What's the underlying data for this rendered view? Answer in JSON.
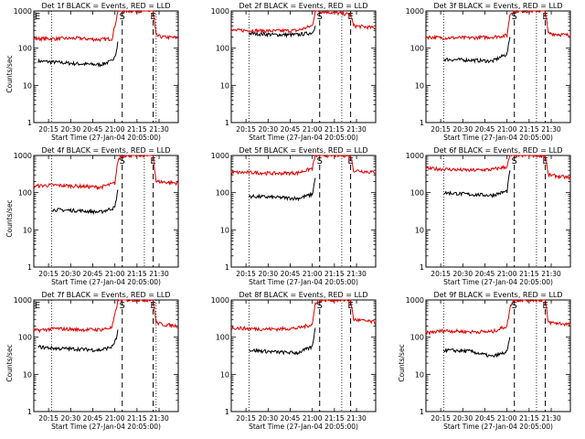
{
  "figure": {
    "panel_count": 9,
    "layout": "3x3 grid",
    "colors": {
      "events": "#000000",
      "lld": "#e00000",
      "axes": "#000000",
      "background": "#ffffff"
    }
  },
  "chart_data": [
    {
      "type": "line",
      "title": "Det 1f BLACK = Events, RED = LLD",
      "xlabel": "Start Time (27-Jan-04 20:05:00)",
      "ylabel": "Counts/sec",
      "xlim": [
        "20:05",
        "21:43"
      ],
      "ylim": [
        1,
        1000
      ],
      "yscale": "log",
      "xticks": [
        "20:15",
        "20:30",
        "20:45",
        "21:00",
        "21:15",
        "21:30"
      ],
      "yticks": [
        "1",
        "10",
        "100",
        "1000"
      ],
      "markers": [
        "E",
        "S",
        "E"
      ],
      "dotted_lines": [
        "20:17",
        "21:28"
      ],
      "dashed_lines": [
        "21:05",
        "21:26"
      ],
      "series": [
        {
          "name": "BLACK",
          "x": [
            "20:08",
            "20:20",
            "20:35",
            "20:50",
            "20:58",
            "21:01",
            "21:02"
          ],
          "values": [
            45,
            42,
            38,
            36,
            45,
            80,
            150
          ]
        },
        {
          "name": "RED",
          "x": [
            "20:05",
            "20:20",
            "20:35",
            "20:50",
            "20:58",
            "21:01",
            "21:02",
            "21:26",
            "21:28",
            "21:32",
            "21:43"
          ],
          "values": [
            180,
            180,
            185,
            170,
            180,
            600,
            1000,
            1000,
            220,
            200,
            190
          ]
        }
      ]
    },
    {
      "type": "line",
      "title": "Det 2f BLACK = Events, RED = LLD",
      "xlabel": "Start Time (27-Jan-04 20:05:00)",
      "ylabel": "",
      "xlim": [
        "20:05",
        "21:43"
      ],
      "ylim": [
        1,
        1000
      ],
      "yscale": "log",
      "xticks": [
        "20:15",
        "20:30",
        "20:45",
        "21:00",
        "21:15",
        "21:30"
      ],
      "yticks": [
        "1",
        "10",
        "100",
        "1000"
      ],
      "markers": [
        "S",
        "E"
      ],
      "dotted_lines": [
        "20:17",
        "21:20"
      ],
      "dashed_lines": [
        "21:05",
        "21:26"
      ],
      "series": [
        {
          "name": "BLACK",
          "x": [
            "20:17",
            "20:35",
            "20:50",
            "21:00",
            "21:02"
          ],
          "values": [
            250,
            230,
            230,
            260,
            400
          ]
        },
        {
          "name": "RED",
          "x": [
            "20:05",
            "20:17",
            "20:35",
            "20:50",
            "21:00",
            "21:02",
            "21:04",
            "21:26",
            "21:28",
            "21:43"
          ],
          "values": [
            300,
            300,
            290,
            300,
            400,
            1000,
            1000,
            800,
            400,
            350
          ]
        }
      ]
    },
    {
      "type": "line",
      "title": "Det 3f BLACK = Events, RED = LLD",
      "xlabel": "Start Time (27-Jan-04 20:05:00)",
      "ylabel": "",
      "xlim": [
        "20:05",
        "21:43"
      ],
      "ylim": [
        1,
        1000
      ],
      "yscale": "log",
      "xticks": [
        "20:15",
        "20:30",
        "20:45",
        "21:00",
        "21:15",
        "21:30"
      ],
      "yticks": [
        "1",
        "10",
        "100",
        "1000"
      ],
      "markers": [
        "S",
        "E"
      ],
      "dotted_lines": [
        "20:17",
        "21:20"
      ],
      "dashed_lines": [
        "21:05",
        "21:26"
      ],
      "series": [
        {
          "name": "BLACK",
          "x": [
            "20:17",
            "20:35",
            "20:50",
            "21:00",
            "21:02"
          ],
          "values": [
            50,
            48,
            45,
            70,
            200
          ]
        },
        {
          "name": "RED",
          "x": [
            "20:05",
            "20:17",
            "20:35",
            "20:50",
            "21:00",
            "21:02",
            "21:04",
            "21:26",
            "21:28",
            "21:43"
          ],
          "values": [
            200,
            190,
            190,
            200,
            220,
            800,
            1000,
            1000,
            250,
            220
          ]
        }
      ]
    },
    {
      "type": "line",
      "title": "Det 4f BLACK = Events, RED = LLD",
      "xlabel": "Start Time (27-Jan-04 20:05:00)",
      "ylabel": "Counts/sec",
      "xlim": [
        "20:05",
        "21:43"
      ],
      "ylim": [
        1,
        1000
      ],
      "yscale": "log",
      "xticks": [
        "20:15",
        "20:30",
        "20:45",
        "21:00",
        "21:15",
        "21:30"
      ],
      "yticks": [
        "1",
        "10",
        "100",
        "1000"
      ],
      "markers": [
        "S",
        "E"
      ],
      "dotted_lines": [
        "20:17",
        "21:20"
      ],
      "dashed_lines": [
        "21:05",
        "21:26"
      ],
      "series": [
        {
          "name": "BLACK",
          "x": [
            "20:17",
            "20:35",
            "20:50",
            "21:00",
            "21:02"
          ],
          "values": [
            35,
            33,
            30,
            40,
            120
          ]
        },
        {
          "name": "RED",
          "x": [
            "20:05",
            "20:17",
            "20:35",
            "20:50",
            "21:00",
            "21:02",
            "21:04",
            "21:26",
            "21:28",
            "21:43"
          ],
          "values": [
            150,
            160,
            150,
            140,
            180,
            700,
            1000,
            1000,
            200,
            180
          ]
        }
      ]
    },
    {
      "type": "line",
      "title": "Det 5f BLACK = Events, RED = LLD",
      "xlabel": "Start Time (27-Jan-04 20:05:00)",
      "ylabel": "",
      "xlim": [
        "20:05",
        "21:43"
      ],
      "ylim": [
        1,
        1000
      ],
      "yscale": "log",
      "xticks": [
        "20:15",
        "20:30",
        "20:45",
        "21:00",
        "21:15",
        "21:30"
      ],
      "yticks": [
        "1",
        "10",
        "100",
        "1000"
      ],
      "markers": [
        "S",
        "E"
      ],
      "dotted_lines": [
        "20:17",
        "21:20"
      ],
      "dashed_lines": [
        "21:05",
        "21:26"
      ],
      "series": [
        {
          "name": "BLACK",
          "x": [
            "20:17",
            "20:35",
            "20:50",
            "21:00",
            "21:02"
          ],
          "values": [
            80,
            75,
            70,
            90,
            250
          ]
        },
        {
          "name": "RED",
          "x": [
            "20:05",
            "20:17",
            "20:35",
            "20:50",
            "21:00",
            "21:02",
            "21:04",
            "21:26",
            "21:28",
            "21:43"
          ],
          "values": [
            350,
            350,
            330,
            340,
            450,
            1000,
            1000,
            1000,
            400,
            350
          ]
        }
      ]
    },
    {
      "type": "line",
      "title": "Det 6f BLACK = Events, RED = LLD",
      "xlabel": "Start Time (27-Jan-04 20:05:00)",
      "ylabel": "",
      "xlim": [
        "20:05",
        "21:43"
      ],
      "ylim": [
        1,
        1000
      ],
      "yscale": "log",
      "xticks": [
        "20:15",
        "20:30",
        "20:45",
        "21:00",
        "21:15",
        "21:30"
      ],
      "yticks": [
        "1",
        "10",
        "100",
        "1000"
      ],
      "markers": [
        "S",
        "E"
      ],
      "dotted_lines": [
        "20:17",
        "21:20"
      ],
      "dashed_lines": [
        "21:05",
        "21:26"
      ],
      "series": [
        {
          "name": "BLACK",
          "x": [
            "20:17",
            "20:35",
            "20:50",
            "21:00",
            "21:02"
          ],
          "values": [
            100,
            90,
            85,
            110,
            400
          ]
        },
        {
          "name": "RED",
          "x": [
            "20:05",
            "20:17",
            "20:35",
            "20:50",
            "21:00",
            "21:02",
            "21:04",
            "21:26",
            "21:28",
            "21:43"
          ],
          "values": [
            450,
            430,
            400,
            420,
            500,
            1000,
            1000,
            1000,
            300,
            250
          ]
        }
      ]
    },
    {
      "type": "line",
      "title": "Det 7f BLACK = Events, RED = LLD",
      "xlabel": "Start Time (27-Jan-04 20:05:00)",
      "ylabel": "Counts/sec",
      "xlim": [
        "20:05",
        "21:43"
      ],
      "ylim": [
        1,
        1000
      ],
      "yscale": "log",
      "xticks": [
        "20:15",
        "20:30",
        "20:45",
        "21:00",
        "21:15",
        "21:30"
      ],
      "yticks": [
        "1",
        "10",
        "100",
        "1000"
      ],
      "markers": [
        "E",
        "S",
        "E"
      ],
      "dotted_lines": [
        "20:17",
        "21:28"
      ],
      "dashed_lines": [
        "21:05",
        "21:26"
      ],
      "series": [
        {
          "name": "BLACK",
          "x": [
            "20:08",
            "20:20",
            "20:35",
            "20:50",
            "20:58",
            "21:01",
            "21:02"
          ],
          "values": [
            55,
            50,
            48,
            45,
            55,
            90,
            160
          ]
        },
        {
          "name": "RED",
          "x": [
            "20:05",
            "20:20",
            "20:35",
            "20:50",
            "20:58",
            "21:01",
            "21:02",
            "21:26",
            "21:28",
            "21:32",
            "21:43"
          ],
          "values": [
            150,
            170,
            160,
            160,
            180,
            600,
            1000,
            1000,
            250,
            220,
            200
          ]
        }
      ]
    },
    {
      "type": "line",
      "title": "Det 8f BLACK = Events, RED = LLD",
      "xlabel": "Start Time (27-Jan-04 20:05:00)",
      "ylabel": "",
      "xlim": [
        "20:05",
        "21:43"
      ],
      "ylim": [
        1,
        1000
      ],
      "yscale": "log",
      "xticks": [
        "20:15",
        "20:30",
        "20:45",
        "21:00",
        "21:15",
        "21:30"
      ],
      "yticks": [
        "1",
        "10",
        "100",
        "1000"
      ],
      "markers": [
        "S",
        "E"
      ],
      "dotted_lines": [
        "20:17",
        "21:20"
      ],
      "dashed_lines": [
        "21:05",
        "21:26"
      ],
      "series": [
        {
          "name": "BLACK",
          "x": [
            "20:17",
            "20:35",
            "20:50",
            "21:00",
            "21:02"
          ],
          "values": [
            45,
            40,
            38,
            55,
            180
          ]
        },
        {
          "name": "RED",
          "x": [
            "20:05",
            "20:17",
            "20:35",
            "20:50",
            "21:00",
            "21:02",
            "21:04",
            "21:26",
            "21:28",
            "21:43"
          ],
          "values": [
            180,
            170,
            165,
            175,
            220,
            800,
            1000,
            1000,
            300,
            250
          ]
        }
      ]
    },
    {
      "type": "line",
      "title": "Det 9f BLACK = Events, RED = LLD",
      "xlabel": "Start Time (27-Jan-04 20:05:00)",
      "ylabel": "Counts/sec",
      "xlim": [
        "20:05",
        "21:43"
      ],
      "ylim": [
        1,
        1000
      ],
      "yscale": "log",
      "xticks": [
        "20:15",
        "20:30",
        "20:45",
        "21:00",
        "21:15",
        "21:30"
      ],
      "yticks": [
        "1",
        "10",
        "100",
        "1000"
      ],
      "markers": [
        "S",
        "E"
      ],
      "dotted_lines": [
        "20:17",
        "21:20"
      ],
      "dashed_lines": [
        "21:05",
        "21:26"
      ],
      "series": [
        {
          "name": "BLACK",
          "x": [
            "20:17",
            "20:35",
            "20:50",
            "21:00",
            "21:02"
          ],
          "values": [
            45,
            42,
            30,
            40,
            100
          ]
        },
        {
          "name": "RED",
          "x": [
            "20:05",
            "20:17",
            "20:35",
            "20:50",
            "21:00",
            "21:02",
            "21:04",
            "21:26",
            "21:28",
            "21:43"
          ],
          "values": [
            130,
            150,
            140,
            140,
            200,
            600,
            1000,
            1000,
            250,
            220
          ]
        }
      ]
    }
  ]
}
